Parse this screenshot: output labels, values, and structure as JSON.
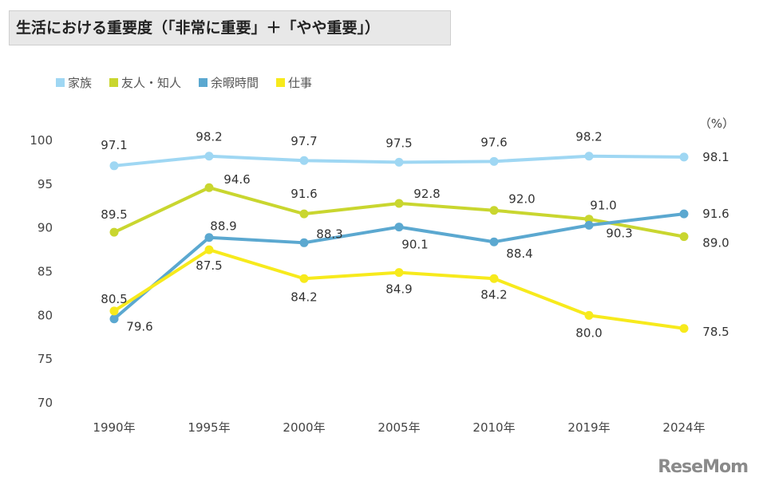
{
  "chart_data": {
    "type": "line",
    "title": "生活における重要度（「非常に重要」＋「やや重要」）",
    "unit": "（%）",
    "categories": [
      "1990年",
      "1995年",
      "2000年",
      "2005年",
      "2010年",
      "2019年",
      "2024年"
    ],
    "ylim": [
      70,
      100
    ],
    "yticks": [
      70,
      75,
      80,
      85,
      90,
      95,
      100
    ],
    "grid": false,
    "legend": "top-left",
    "series": [
      {
        "name": "家族",
        "color": "#9fd7f3",
        "values": [
          97.1,
          98.2,
          97.7,
          97.5,
          97.6,
          98.2,
          98.1
        ]
      },
      {
        "name": "友人・知人",
        "color": "#c9d62f",
        "values": [
          89.5,
          94.6,
          91.6,
          92.8,
          92.0,
          91.0,
          89.0
        ]
      },
      {
        "name": "余暇時間",
        "color": "#5ba8d0",
        "values": [
          79.6,
          88.9,
          88.3,
          90.1,
          88.4,
          90.3,
          91.6
        ]
      },
      {
        "name": "仕事",
        "color": "#f7ea1c",
        "values": [
          80.5,
          87.5,
          84.2,
          84.9,
          84.2,
          80.0,
          78.5
        ]
      }
    ]
  },
  "watermark": "ReseMom"
}
